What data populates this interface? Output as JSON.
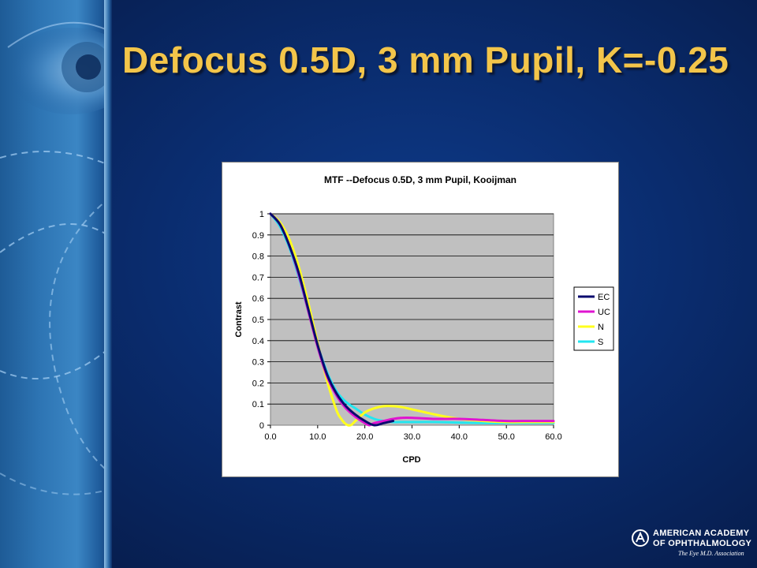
{
  "slide": {
    "title": "Defocus 0.5D, 3 mm Pupil, K=-0.25"
  },
  "logo": {
    "line1": "AMERICAN ACADEMY",
    "line2": "OF OPHTHALMOLOGY",
    "line3": "The Eye M.D. Association"
  },
  "colors": {
    "title": "#f3c54a",
    "background": "#0a2c6e",
    "plot_area": "#c0c0c0"
  },
  "chart_data": {
    "type": "line",
    "title": "MTF --Defocus 0.5D, 3 mm Pupil, Kooijman",
    "xlabel": "CPD",
    "ylabel": "Contrast",
    "xlim": [
      0,
      60
    ],
    "ylim": [
      0,
      1
    ],
    "x_ticks": [
      "0.0",
      "10.0",
      "20.0",
      "30.0",
      "40.0",
      "50.0",
      "60.0"
    ],
    "y_ticks": [
      "0",
      "0.1",
      "0.2",
      "0.3",
      "0.4",
      "0.5",
      "0.6",
      "0.7",
      "0.8",
      "0.9",
      "1"
    ],
    "grid": "horizontal",
    "legend_position": "right",
    "series": [
      {
        "name": "EC",
        "color": "#0a0a6e",
        "x": [
          0,
          2,
          4,
          6,
          8,
          10,
          12,
          14,
          16,
          18,
          20,
          22,
          24,
          26
        ],
        "y": [
          1.0,
          0.95,
          0.85,
          0.72,
          0.55,
          0.38,
          0.24,
          0.15,
          0.09,
          0.05,
          0.02,
          0.0,
          0.01,
          0.02
        ]
      },
      {
        "name": "UC",
        "color": "#e014d0",
        "x": [
          0,
          2,
          4,
          6,
          8,
          10,
          12,
          14,
          16,
          18,
          20,
          21,
          22,
          24,
          26,
          28,
          30,
          35,
          40,
          45,
          50,
          55,
          60
        ],
        "y": [
          1.0,
          0.95,
          0.85,
          0.71,
          0.54,
          0.37,
          0.23,
          0.14,
          0.08,
          0.04,
          0.01,
          0.0,
          0.01,
          0.02,
          0.03,
          0.035,
          0.035,
          0.03,
          0.03,
          0.025,
          0.02,
          0.02,
          0.02
        ]
      },
      {
        "name": "N",
        "color": "#ffff1e",
        "x": [
          0,
          2,
          4,
          6,
          8,
          10,
          12,
          14,
          15,
          16,
          17,
          18,
          20,
          22,
          24,
          26,
          28,
          30,
          35,
          40,
          45,
          50,
          55,
          60
        ],
        "y": [
          1.0,
          0.96,
          0.88,
          0.75,
          0.58,
          0.39,
          0.21,
          0.07,
          0.03,
          0.005,
          0.0,
          0.02,
          0.06,
          0.08,
          0.09,
          0.09,
          0.085,
          0.075,
          0.05,
          0.03,
          0.02,
          0.015,
          0.015,
          0.015
        ]
      },
      {
        "name": "S",
        "color": "#22e6f0",
        "x": [
          0,
          2,
          4,
          6,
          8,
          10,
          12,
          14,
          16,
          18,
          20,
          22,
          24,
          26,
          28,
          30,
          35,
          40,
          45,
          50,
          55,
          60
        ],
        "y": [
          1.0,
          0.94,
          0.84,
          0.7,
          0.54,
          0.38,
          0.25,
          0.16,
          0.11,
          0.08,
          0.05,
          0.03,
          0.02,
          0.015,
          0.015,
          0.015,
          0.015,
          0.012,
          0.01,
          0.01,
          0.01,
          0.01
        ]
      }
    ]
  }
}
